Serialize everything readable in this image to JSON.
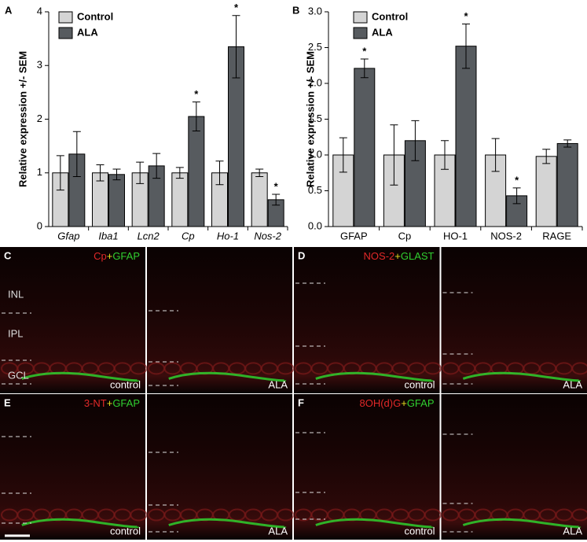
{
  "chart_data": [
    {
      "type": "bar",
      "panel_label": "A",
      "y_label": "Relative expression +/- SEM",
      "categories": [
        "Gfap",
        "Iba1",
        "Lcn2",
        "Cp",
        "Ho-1",
        "Nos-2"
      ],
      "category_style": "italic",
      "ylim": [
        0,
        4
      ],
      "yticks": [
        0,
        1,
        2,
        3,
        4
      ],
      "legend": "top-left",
      "series": [
        {
          "name": "Control",
          "color": "#d4d4d4",
          "values": [
            1,
            1,
            1,
            1,
            1,
            1
          ],
          "errors": [
            0.32,
            0.15,
            0.2,
            0.1,
            0.22,
            0.07
          ]
        },
        {
          "name": "ALA",
          "color": "#575b5f",
          "values": [
            1.35,
            0.97,
            1.13,
            2.05,
            3.35,
            0.5
          ],
          "errors": [
            0.42,
            0.1,
            0.23,
            0.27,
            0.58,
            0.1
          ],
          "significance_mark": "*",
          "significant": [
            false,
            false,
            false,
            true,
            true,
            true
          ]
        }
      ]
    },
    {
      "type": "bar",
      "panel_label": "B",
      "y_label": "Relative expression +/- SEM",
      "categories": [
        "GFAP",
        "Cp",
        "HO-1",
        "NOS-2",
        "RAGE"
      ],
      "category_style": "normal",
      "ylim": [
        0,
        3
      ],
      "yticks": [
        {
          "value": 0,
          "label": "0.0"
        },
        0.5,
        {
          "value": 1,
          "label": "1.0"
        },
        1.5,
        {
          "value": 2,
          "label": "2.0"
        },
        2.5,
        {
          "value": 3,
          "label": "3.0"
        }
      ],
      "legend": "top-left",
      "series": [
        {
          "name": "Control",
          "color": "#d4d4d4",
          "values": [
            1,
            1,
            1,
            1,
            0.98
          ],
          "errors": [
            0.24,
            0.42,
            0.2,
            0.23,
            0.1
          ]
        },
        {
          "name": "ALA",
          "color": "#575b5f",
          "values": [
            2.21,
            1.2,
            2.52,
            0.43,
            1.16
          ],
          "errors": [
            0.13,
            0.28,
            0.31,
            0.11,
            0.05
          ],
          "significance_mark": "*",
          "significant": [
            true,
            false,
            true,
            true,
            false
          ]
        }
      ]
    }
  ],
  "image_panels": [
    {
      "letter": "C",
      "stain": [
        {
          "text": "Cp",
          "color": "#e02828"
        },
        {
          "text": "+",
          "color": "#e8e020"
        },
        {
          "text": "GFAP",
          "color": "#30d030"
        }
      ],
      "layers": [
        "INL",
        "IPL",
        "GCL"
      ],
      "conditions": [
        "control",
        "ALA"
      ]
    },
    {
      "letter": "D",
      "stain": [
        {
          "text": "NOS-2",
          "color": "#e02828"
        },
        {
          "text": "+",
          "color": "#e8e020"
        },
        {
          "text": "GLAST",
          "color": "#30d030"
        }
      ],
      "conditions": [
        "control",
        "ALA"
      ]
    },
    {
      "letter": "E",
      "stain": [
        {
          "text": "3-NT",
          "color": "#e02828"
        },
        {
          "text": "+",
          "color": "#e8e020"
        },
        {
          "text": "GFAP",
          "color": "#30d030"
        }
      ],
      "conditions": [
        "control",
        "ALA"
      ]
    },
    {
      "letter": "F",
      "stain": [
        {
          "text": "8OH(d)G",
          "color": "#e02828"
        },
        {
          "text": "+",
          "color": "#e8e020"
        },
        {
          "text": "GFAP",
          "color": "#30d030"
        }
      ],
      "conditions": [
        "control",
        "ALA"
      ]
    }
  ]
}
